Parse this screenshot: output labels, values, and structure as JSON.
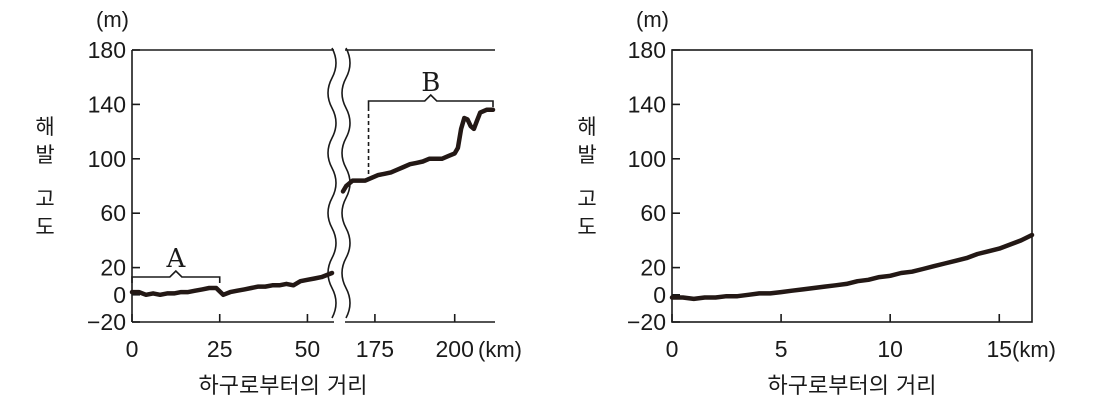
{
  "chart_data": [
    {
      "type": "line",
      "unit": "(m)",
      "ylabel": [
        "해",
        "발",
        "고",
        "도"
      ],
      "xlabel": "하구로부터의 거리",
      "ylim": [
        -20,
        180
      ],
      "yticks": [
        180,
        140,
        100,
        60,
        20,
        0,
        -20
      ],
      "ytick_labels": [
        "180",
        "140",
        "100",
        "60",
        "20",
        "0",
        "−20"
      ],
      "x_broken": true,
      "x_segments": [
        {
          "xlim": [
            0,
            57
          ],
          "ticks": [
            0,
            25,
            50
          ],
          "tick_labels": [
            "0",
            "25",
            "50"
          ]
        },
        {
          "xlim": [
            165,
            212
          ],
          "ticks": [
            175,
            200
          ],
          "tick_labels": [
            "175",
            "200"
          ]
        }
      ],
      "x_unit": "(km)",
      "series": [
        {
          "name": "segment-1",
          "x": [
            0,
            2,
            4,
            6,
            8,
            10,
            12,
            14,
            16,
            18,
            20,
            22,
            24,
            26,
            28,
            30,
            32,
            34,
            36,
            38,
            40,
            42,
            44,
            46,
            48,
            50,
            52,
            54,
            56,
            57
          ],
          "y": [
            2,
            2,
            0,
            1,
            0,
            1,
            1,
            2,
            2,
            3,
            4,
            5,
            5,
            0,
            2,
            3,
            4,
            5,
            6,
            6,
            7,
            7,
            8,
            7,
            10,
            11,
            12,
            13,
            15,
            16
          ]
        },
        {
          "name": "segment-2",
          "x": [
            165,
            166,
            167,
            168,
            170,
            172,
            174,
            176,
            178,
            180,
            182,
            184,
            186,
            188,
            190,
            192,
            194,
            196,
            198,
            200,
            201,
            202,
            203,
            204,
            205,
            206,
            207,
            208,
            210,
            211,
            212
          ],
          "y": [
            76,
            80,
            82,
            84,
            84,
            84,
            86,
            88,
            89,
            90,
            92,
            94,
            96,
            97,
            98,
            100,
            100,
            100,
            102,
            104,
            108,
            122,
            130,
            129,
            124,
            122,
            128,
            134,
            136,
            136,
            136
          ]
        }
      ],
      "annotations": [
        {
          "label": "A",
          "x_start": 0,
          "x_end": 25
        },
        {
          "label": "B",
          "x_start": 173,
          "x_end": 212
        }
      ]
    },
    {
      "type": "line",
      "unit": "(m)",
      "ylabel": [
        "해",
        "발",
        "고",
        "도"
      ],
      "xlabel": "하구로부터의 거리",
      "ylim": [
        -20,
        180
      ],
      "yticks": [
        180,
        140,
        100,
        60,
        20,
        0,
        -20
      ],
      "ytick_labels": [
        "180",
        "140",
        "100",
        "60",
        "20",
        "0",
        "−20"
      ],
      "xlim": [
        0,
        16.5
      ],
      "xticks": [
        0,
        5,
        10,
        15
      ],
      "xtick_labels": [
        "0",
        "5",
        "10",
        "15"
      ],
      "x_unit": "(km)",
      "series": [
        {
          "name": "elevation",
          "x": [
            0,
            0.5,
            1,
            1.5,
            2,
            2.5,
            3,
            3.5,
            4,
            4.5,
            5,
            5.5,
            6,
            6.5,
            7,
            7.5,
            8,
            8.5,
            9,
            9.5,
            10,
            10.5,
            11,
            11.5,
            12,
            12.5,
            13,
            13.5,
            14,
            14.5,
            15,
            15.5,
            16,
            16.5
          ],
          "y": [
            -2,
            -2,
            -3,
            -2,
            -2,
            -1,
            -1,
            0,
            1,
            1,
            2,
            3,
            4,
            5,
            6,
            7,
            8,
            10,
            11,
            13,
            14,
            16,
            17,
            19,
            21,
            23,
            25,
            27,
            30,
            32,
            34,
            37,
            40,
            44
          ]
        }
      ]
    }
  ]
}
